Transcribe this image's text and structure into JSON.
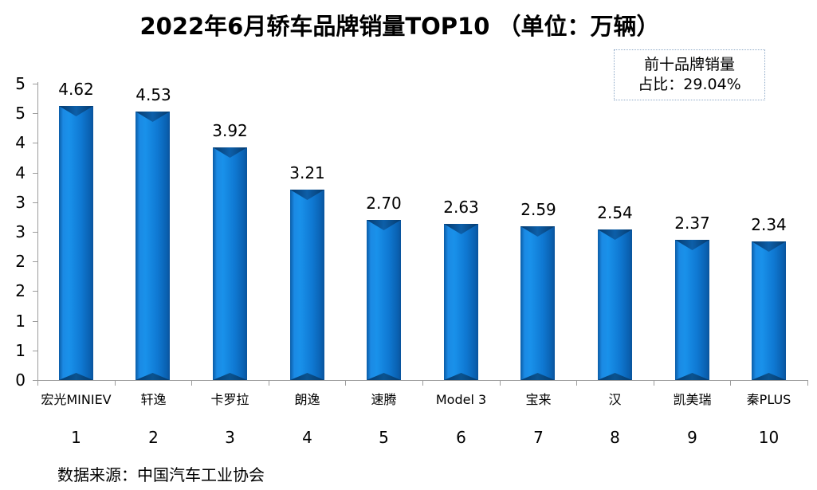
{
  "title": "2022年6月轿车品牌销量TOP10 （单位：万辆）",
  "annotation_box": {
    "line1": "前十品牌销量",
    "line2": "占比：29.04%"
  },
  "source": "数据来源：中国汽车工业协会",
  "colors": {
    "bar_main": "#0f78d1",
    "bar_highlight": "#1991ea",
    "bar_shadow": "#05396b",
    "axis": "#9c9c9c",
    "text": "#000000",
    "annotation_border": "#8faac8",
    "background": "#ffffff"
  },
  "chart_data": {
    "type": "bar",
    "title": "2022年6月轿车品牌销量TOP10 （单位：万辆）",
    "categories": [
      "宏光MINIEV",
      "轩逸",
      "卡罗拉",
      "朗逸",
      "速腾",
      "Model 3",
      "宝来",
      "汉",
      "凯美瑞",
      "秦PLUS"
    ],
    "ranks": [
      "1",
      "2",
      "3",
      "4",
      "5",
      "6",
      "7",
      "8",
      "9",
      "10"
    ],
    "values": [
      4.62,
      4.53,
      3.92,
      3.21,
      2.7,
      2.63,
      2.59,
      2.54,
      2.37,
      2.34
    ],
    "value_labels": [
      "4.62",
      "4.53",
      "3.92",
      "3.21",
      "2.70",
      "2.63",
      "2.59",
      "2.54",
      "2.37",
      "2.34"
    ],
    "xlabel": "",
    "ylabel": "",
    "ylim": [
      0,
      5
    ],
    "ytick_step": 0.5,
    "ytick_labels_top_to_bottom": [
      "5",
      "5",
      "4",
      "4",
      "3",
      "3",
      "2",
      "2",
      "1",
      "1",
      "0"
    ],
    "grid": false,
    "legend": "none",
    "bar_style": "3d-bevel-blue",
    "annotation": "前十品牌销量占比：29.04%",
    "data_source": "数据来源：中国汽车工业协会"
  }
}
